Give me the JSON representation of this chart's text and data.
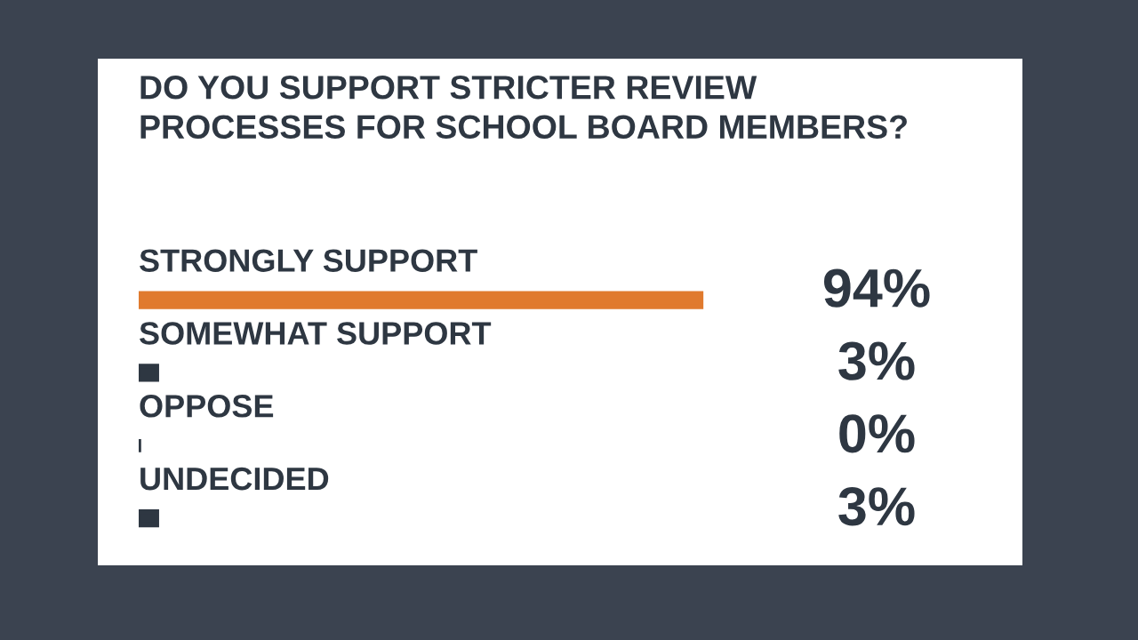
{
  "chart_data": {
    "type": "bar",
    "orientation": "horizontal",
    "title": "DO YOU SUPPORT STRICTER REVIEW\nPROCESSES FOR SCHOOL BOARD MEMBERS?",
    "categories": [
      "STRONGLY SUPPORT",
      "SOMEWHAT SUPPORT",
      "OPPOSE",
      "UNDECIDED"
    ],
    "values": [
      94,
      3,
      0,
      3
    ],
    "value_labels": [
      "94%",
      "3%",
      "0%",
      "3%"
    ],
    "colors": [
      "#e07a2e",
      "#2e3742",
      "#2e3742",
      "#2e3742"
    ]
  }
}
